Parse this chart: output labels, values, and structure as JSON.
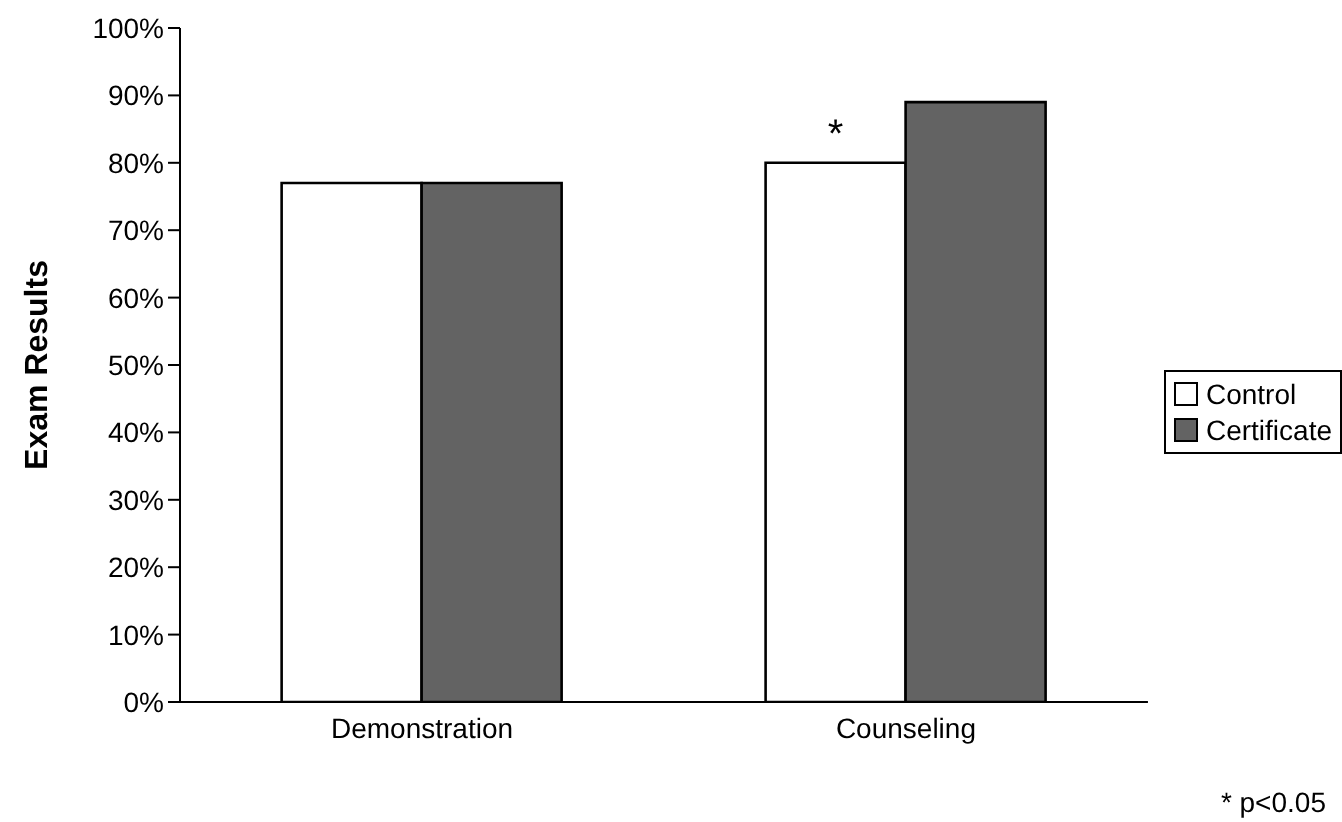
{
  "chart_data": {
    "type": "bar",
    "ylabel": "Exam Results",
    "categories": [
      "Demonstration",
      "Counseling"
    ],
    "series": [
      {
        "name": "Control",
        "color": "#ffffff",
        "values": [
          77,
          80
        ]
      },
      {
        "name": "Certificate",
        "color": "#636363",
        "values": [
          77,
          89
        ]
      }
    ],
    "ylim": [
      0,
      100
    ],
    "yticks": [
      {
        "value": 0,
        "label": "0%"
      },
      {
        "value": 10,
        "label": "10%"
      },
      {
        "value": 20,
        "label": "20%"
      },
      {
        "value": 30,
        "label": "30%"
      },
      {
        "value": 40,
        "label": "40%"
      },
      {
        "value": 50,
        "label": "50%"
      },
      {
        "value": 60,
        "label": "60%"
      },
      {
        "value": 70,
        "label": "70%"
      },
      {
        "value": 80,
        "label": "80%"
      },
      {
        "value": 90,
        "label": "90%"
      },
      {
        "value": 100,
        "label": "100%"
      }
    ],
    "annotations": [
      {
        "text": "*",
        "x": "Counseling",
        "y": 80
      },
      "* p<0.05"
    ],
    "grid": false,
    "legend": "right"
  }
}
